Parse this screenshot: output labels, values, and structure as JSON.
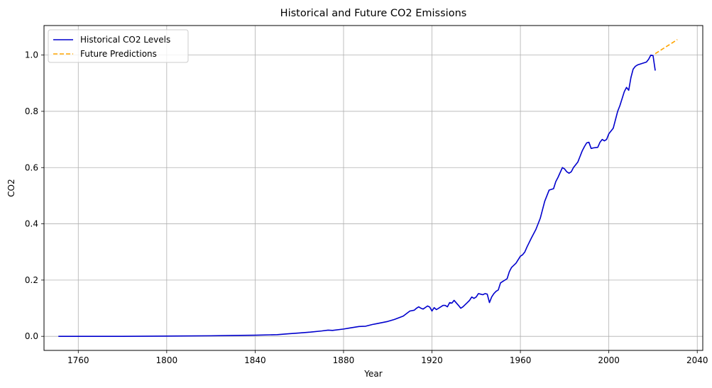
{
  "chart_data": {
    "type": "line",
    "title": "Historical and Future CO2 Emissions",
    "xlabel": "Year",
    "ylabel": "CO2",
    "xlim": [
      1744.5,
      2042.5
    ],
    "ylim": [
      -0.05,
      1.105
    ],
    "x_ticks": [
      1760,
      1800,
      1840,
      1880,
      1920,
      1960,
      2000,
      2040
    ],
    "y_ticks": [
      0.0,
      0.2,
      0.4,
      0.6,
      0.8,
      1.0
    ],
    "x_tick_labels": [
      "1760",
      "1800",
      "1840",
      "1880",
      "1920",
      "1960",
      "2000",
      "2040"
    ],
    "y_tick_labels": [
      "0.0",
      "0.2",
      "0.4",
      "0.6",
      "0.8",
      "1.0"
    ],
    "grid": true,
    "legend_position": "top-left",
    "series": [
      {
        "name": "Historical CO2 Levels",
        "color": "#0000cd",
        "style": "solid",
        "x": [
          1751,
          1780,
          1800,
          1820,
          1830,
          1840,
          1850,
          1855,
          1860,
          1865,
          1870,
          1873,
          1875,
          1880,
          1883,
          1887,
          1890,
          1893,
          1895,
          1900,
          1903,
          1907,
          1908,
          1910,
          1912,
          1913,
          1914,
          1915,
          1916,
          1918,
          1919,
          1920,
          1921,
          1922,
          1923,
          1925,
          1926,
          1927,
          1928,
          1929,
          1930,
          1932,
          1933,
          1934,
          1936,
          1937,
          1938,
          1939,
          1940,
          1941,
          1942,
          1943,
          1944,
          1945,
          1946,
          1947,
          1948,
          1949,
          1950,
          1951,
          1952,
          1953,
          1954,
          1955,
          1956,
          1958,
          1960,
          1961,
          1962,
          1963,
          1965,
          1967,
          1969,
          1970,
          1971,
          1973,
          1975,
          1976,
          1977,
          1979,
          1980,
          1981,
          1982,
          1983,
          1984,
          1986,
          1987,
          1988,
          1989,
          1990,
          1991,
          1992,
          1993,
          1995,
          1996,
          1997,
          1998,
          1999,
          2000,
          2002,
          2004,
          2005,
          2006,
          2007,
          2008,
          2009,
          2010,
          2011,
          2012,
          2013,
          2015,
          2017,
          2018,
          2019,
          2020,
          2021
        ],
        "values": [
          0.0,
          0.0,
          0.001,
          0.002,
          0.003,
          0.004,
          0.006,
          0.009,
          0.012,
          0.015,
          0.019,
          0.022,
          0.021,
          0.026,
          0.03,
          0.035,
          0.036,
          0.042,
          0.045,
          0.053,
          0.06,
          0.072,
          0.078,
          0.09,
          0.093,
          0.1,
          0.105,
          0.1,
          0.097,
          0.108,
          0.104,
          0.09,
          0.102,
          0.095,
          0.1,
          0.11,
          0.11,
          0.105,
          0.12,
          0.118,
          0.128,
          0.11,
          0.1,
          0.105,
          0.12,
          0.128,
          0.14,
          0.135,
          0.14,
          0.152,
          0.15,
          0.148,
          0.152,
          0.15,
          0.12,
          0.14,
          0.152,
          0.16,
          0.165,
          0.19,
          0.195,
          0.2,
          0.205,
          0.23,
          0.245,
          0.26,
          0.285,
          0.29,
          0.3,
          0.318,
          0.35,
          0.38,
          0.42,
          0.45,
          0.48,
          0.52,
          0.525,
          0.55,
          0.565,
          0.6,
          0.595,
          0.585,
          0.58,
          0.585,
          0.6,
          0.62,
          0.64,
          0.66,
          0.675,
          0.688,
          0.69,
          0.668,
          0.67,
          0.672,
          0.69,
          0.7,
          0.695,
          0.7,
          0.72,
          0.74,
          0.8,
          0.82,
          0.845,
          0.87,
          0.885,
          0.875,
          0.92,
          0.95,
          0.96,
          0.965,
          0.97,
          0.975,
          0.985,
          1.0,
          0.998,
          0.945
        ]
      },
      {
        "name": "Future Predictions",
        "color": "#ffa500",
        "style": "dashed",
        "x": [
          2021,
          2031
        ],
        "values": [
          1.005,
          1.055
        ]
      }
    ]
  }
}
